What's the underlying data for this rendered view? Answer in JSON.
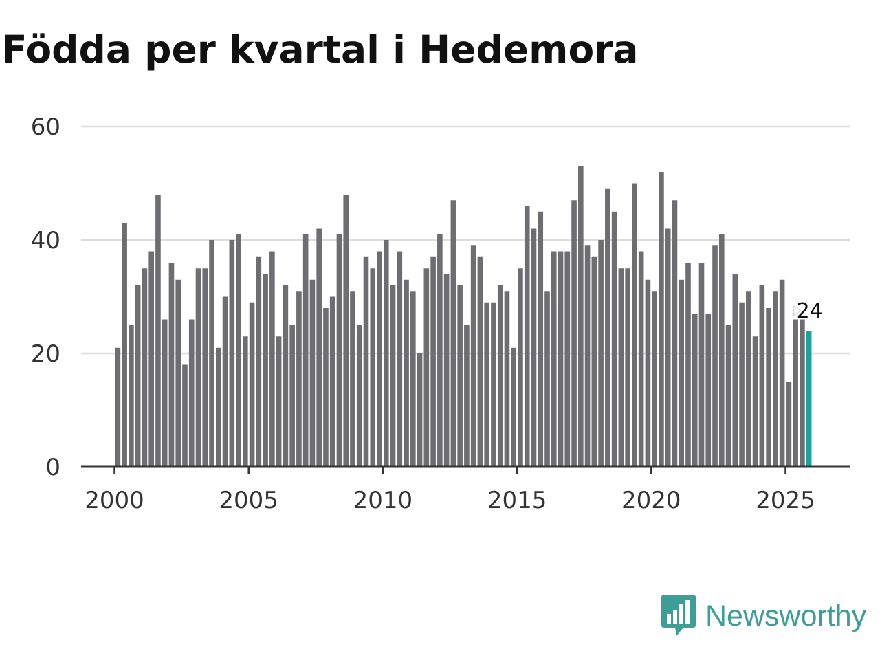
{
  "chart_data": {
    "type": "bar",
    "title": "Födda per kvartal i Hedemora",
    "xlabel": "",
    "ylabel": "",
    "start_year": 2000,
    "frequency": "quarterly",
    "ylim": [
      0,
      60
    ],
    "yticks": [
      0,
      20,
      40,
      60
    ],
    "xlim": [
      2000,
      2027
    ],
    "xticks": [
      2000,
      2005,
      2010,
      2015,
      2020,
      2025
    ],
    "grid": true,
    "values": [
      21,
      43,
      25,
      32,
      35,
      38,
      48,
      26,
      36,
      33,
      18,
      26,
      35,
      35,
      40,
      21,
      30,
      40,
      41,
      23,
      29,
      37,
      34,
      38,
      23,
      32,
      25,
      31,
      41,
      33,
      42,
      28,
      30,
      41,
      48,
      31,
      25,
      37,
      35,
      38,
      40,
      32,
      38,
      33,
      31,
      20,
      35,
      37,
      41,
      34,
      47,
      32,
      25,
      39,
      37,
      29,
      29,
      32,
      31,
      21,
      35,
      46,
      42,
      45,
      31,
      38,
      38,
      38,
      47,
      53,
      39,
      37,
      40,
      49,
      45,
      35,
      35,
      50,
      38,
      33,
      31,
      52,
      42,
      47,
      33,
      36,
      27,
      36,
      27,
      39,
      41,
      25,
      34,
      29,
      31,
      23,
      32,
      28,
      31,
      33,
      15,
      26,
      26,
      24
    ],
    "bar_color": "#6e6d72",
    "highlight_color": "#1aa398",
    "highlight_last": true,
    "last_value_label": "24"
  },
  "brand": {
    "name": "Newsworthy",
    "color": "#3d9e98",
    "icon": "bar-chart-speech-bubble-icon"
  }
}
